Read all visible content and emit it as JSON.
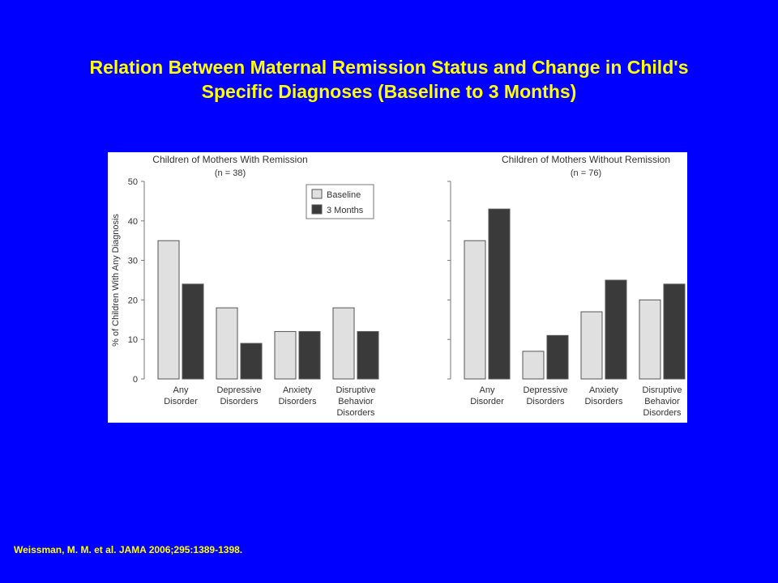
{
  "slide": {
    "title_line1": "Relation Between Maternal Remission Status and Change in Child's",
    "title_line2": "Specific Diagnoses (Baseline to 3 Months)",
    "citation": "Weissman, M. M. et al. JAMA 2006;295:1389-1398."
  },
  "colors": {
    "background": "#0000FF",
    "title": "#FFFF00",
    "baseline": "#E0E0E0",
    "three_months": "#3A3A3A"
  },
  "chart_data": [
    {
      "type": "bar",
      "title": "Children of Mothers With Remission",
      "subtitle": "(n = 38)",
      "ylabel": "% of Children With Any Diagnosis",
      "ylim": [
        0,
        50
      ],
      "yticks": [
        0,
        10,
        20,
        30,
        40,
        50
      ],
      "categories": [
        [
          "Any",
          "Disorder"
        ],
        [
          "Depressive",
          "Disorders"
        ],
        [
          "Anxiety",
          "Disorders"
        ],
        [
          "Disruptive",
          "Behavior",
          "Disorders"
        ]
      ],
      "series": [
        {
          "name": "Baseline",
          "values": [
            35,
            18,
            12,
            18
          ]
        },
        {
          "name": "3 Months",
          "values": [
            24,
            9,
            12,
            12
          ]
        }
      ],
      "legend": "top-right",
      "grid": false
    },
    {
      "type": "bar",
      "title": "Children of Mothers Without Remission",
      "subtitle": "(n = 76)",
      "ylim": [
        0,
        50
      ],
      "categories": [
        [
          "Any",
          "Disorder"
        ],
        [
          "Depressive",
          "Disorders"
        ],
        [
          "Anxiety",
          "Disorders"
        ],
        [
          "Disruptive",
          "Behavior",
          "Disorders"
        ]
      ],
      "series": [
        {
          "name": "Baseline",
          "values": [
            35,
            7,
            17,
            20
          ]
        },
        {
          "name": "3 Months",
          "values": [
            43,
            11,
            25,
            24
          ]
        }
      ],
      "grid": false
    }
  ]
}
